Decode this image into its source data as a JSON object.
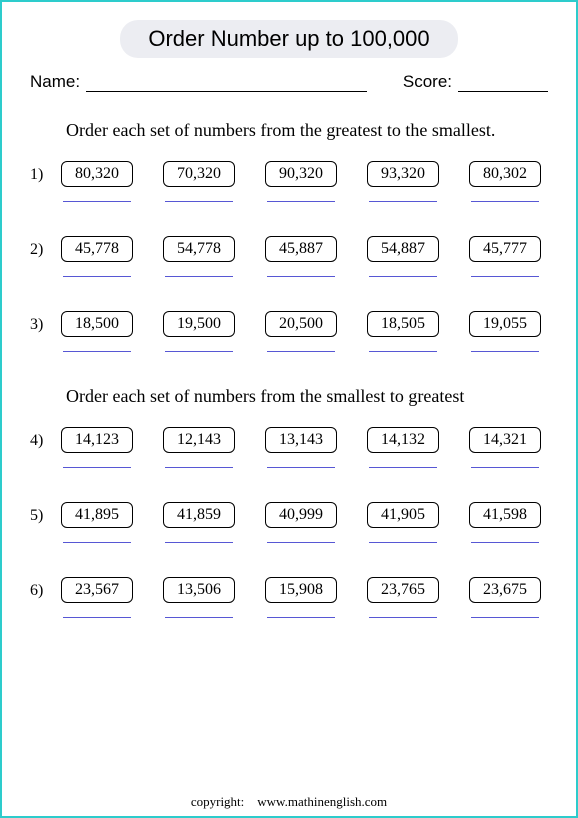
{
  "title": "Order Number up to 100,000",
  "name_label": "Name:",
  "score_label": "Score:",
  "instruction1": "Order each set of numbers from the greatest to the smallest.",
  "instruction2": "Order each set of numbers from the smallest to greatest",
  "problems": [
    {
      "n": "1)",
      "vals": [
        "80,320",
        "70,320",
        "90,320",
        "93,320",
        "80,302"
      ]
    },
    {
      "n": "2)",
      "vals": [
        "45,778",
        "54,778",
        "45,887",
        "54,887",
        "45,777"
      ]
    },
    {
      "n": "3)",
      "vals": [
        "18,500",
        "19,500",
        "20,500",
        "18,505",
        "19,055"
      ]
    },
    {
      "n": "4)",
      "vals": [
        "14,123",
        "12,143",
        "13,143",
        "14,132",
        "14,321"
      ]
    },
    {
      "n": "5)",
      "vals": [
        "41,895",
        "41,859",
        "40,999",
        "41,905",
        "41,598"
      ]
    },
    {
      "n": "6)",
      "vals": [
        "23,567",
        "13,506",
        "15,908",
        "23,765",
        "23,675"
      ]
    }
  ],
  "copyright_label": "copyright:",
  "copyright_site": "www.mathinenglish.com",
  "colors": {
    "border": "#2dcccc",
    "pill_bg": "#ecedf2",
    "answer_line": "#5757d4"
  }
}
